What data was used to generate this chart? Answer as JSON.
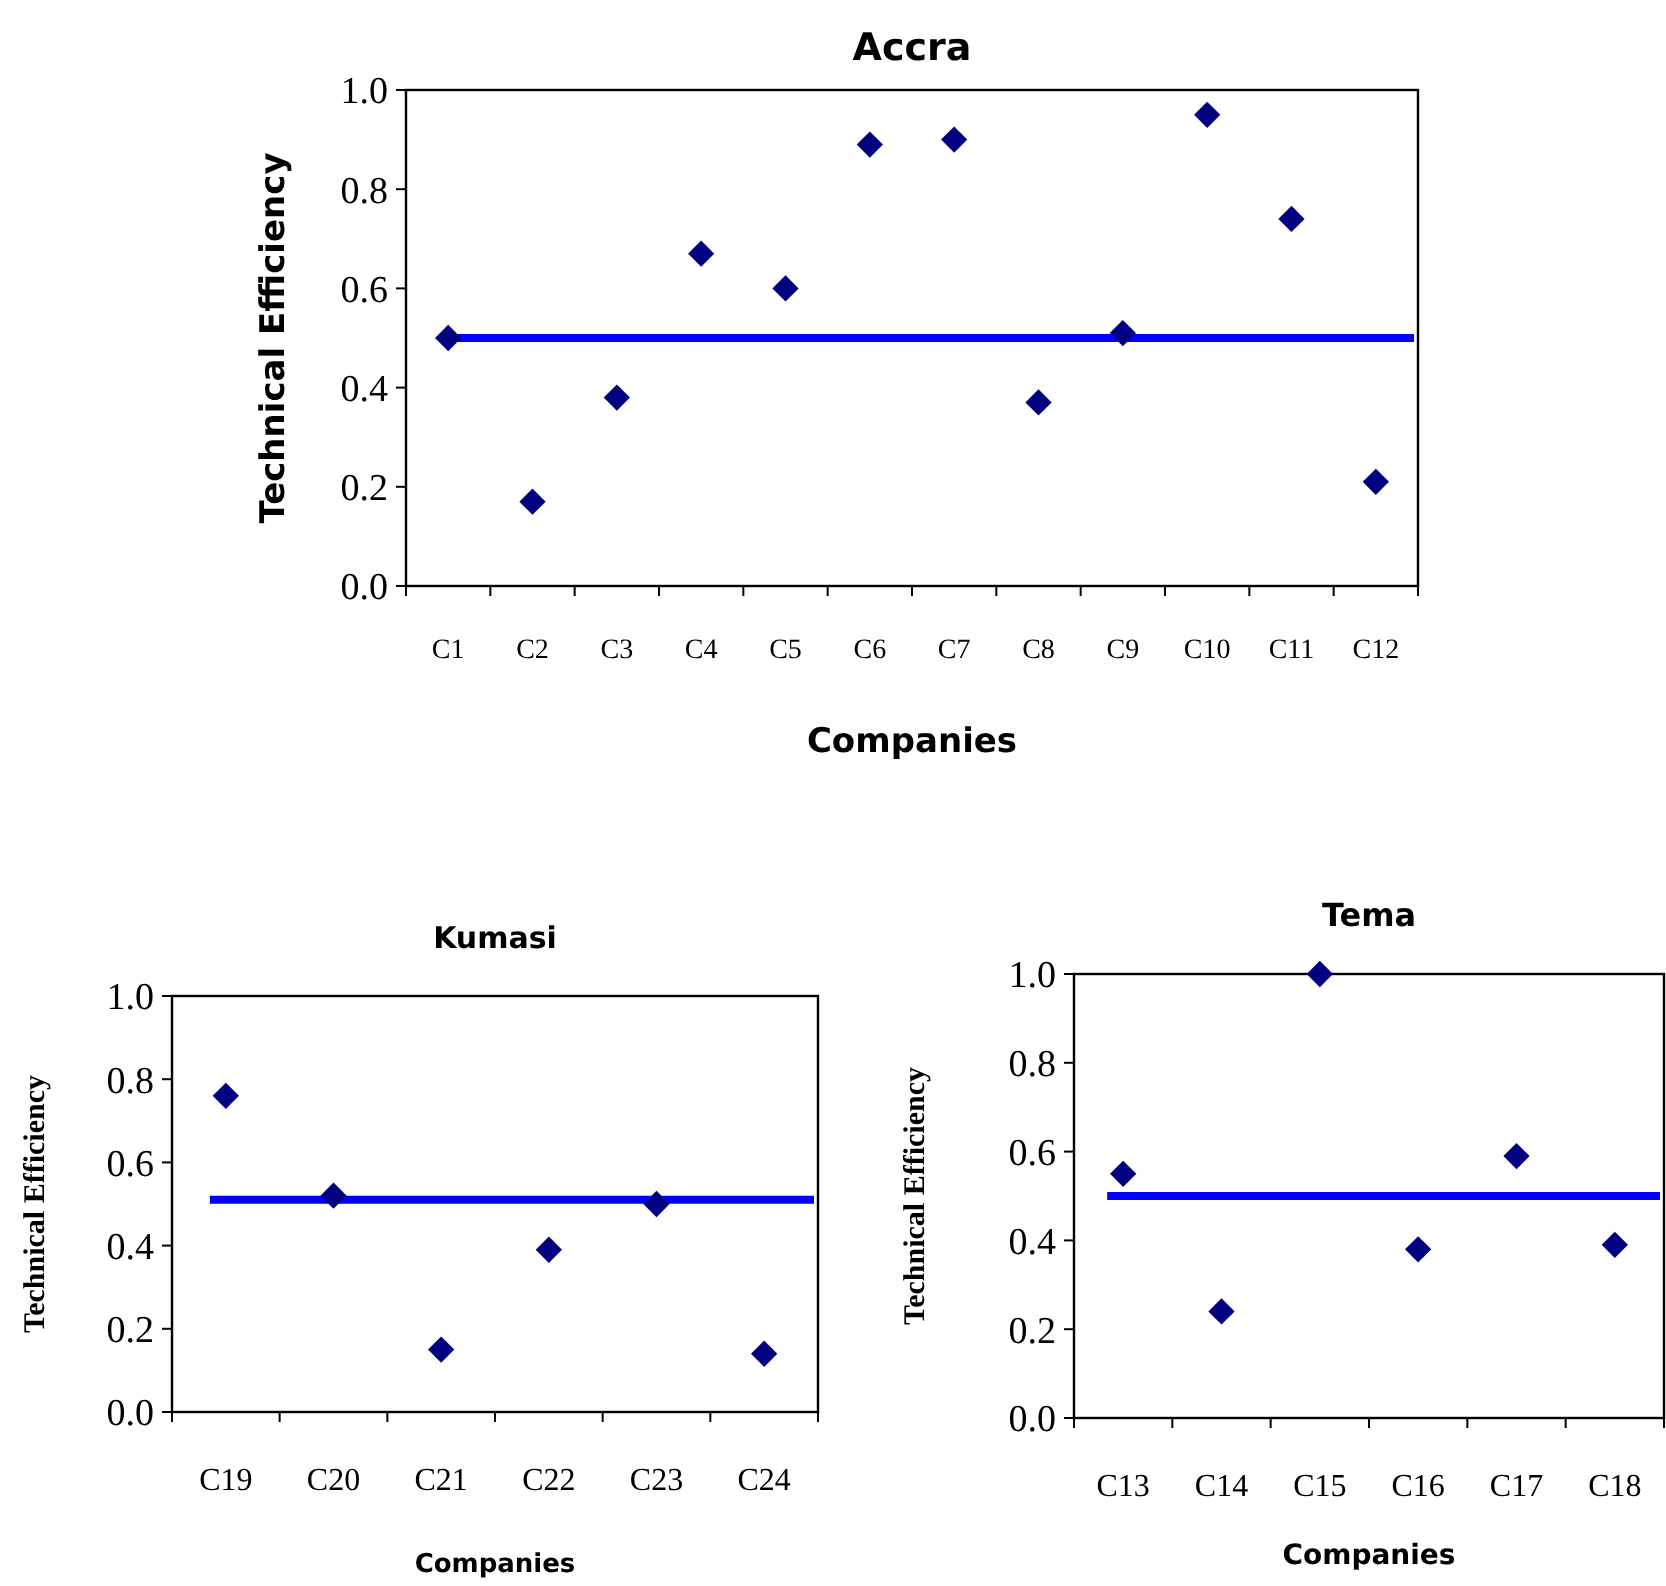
{
  "chart_data": [
    {
      "type": "scatter",
      "title": "Accra",
      "xlabel": "Companies",
      "ylabel": "Technical Efficiency",
      "categories": [
        "C1",
        "C2",
        "C3",
        "C4",
        "C5",
        "C6",
        "C7",
        "C8",
        "C9",
        "C10",
        "C11",
        "C12"
      ],
      "series": [
        {
          "color": "#000080",
          "values": [
            0.5,
            0.17,
            0.38,
            0.67,
            0.6,
            0.89,
            0.9,
            0.37,
            0.51,
            0.95,
            0.74,
            0.21
          ]
        }
      ],
      "marker": "diamond",
      "ylim": [
        0,
        1
      ],
      "yticks": [
        {
          "value": 0,
          "label": "0.0"
        },
        {
          "value": 0.2,
          "label": "0.2"
        },
        {
          "value": 0.4,
          "label": "0.4"
        },
        {
          "value": 0.6,
          "label": "0.6"
        },
        {
          "value": 0.8,
          "label": "0.8"
        },
        {
          "value": 1,
          "label": "1.0"
        }
      ],
      "ref_lines": [
        {
          "axis": "y",
          "value": 0.5,
          "color": "#0000ff"
        }
      ]
    },
    {
      "type": "scatter",
      "title": "Kumasi",
      "xlabel": "Companies",
      "ylabel": "Technical Efficiency",
      "categories": [
        "C19",
        "C20",
        "C21",
        "C22",
        "C23",
        "C24"
      ],
      "series": [
        {
          "color": "#000080",
          "values": [
            0.76,
            0.52,
            0.15,
            0.39,
            0.5,
            0.14
          ]
        }
      ],
      "marker": "diamond",
      "ylim": [
        0,
        1
      ],
      "yticks": [
        {
          "value": 0,
          "label": "0.0"
        },
        {
          "value": 0.2,
          "label": "0.2"
        },
        {
          "value": 0.4,
          "label": "0.4"
        },
        {
          "value": 0.6,
          "label": "0.6"
        },
        {
          "value": 0.8,
          "label": "0.8"
        },
        {
          "value": 1,
          "label": "1.0"
        }
      ],
      "ref_lines": [
        {
          "axis": "y",
          "value": 0.51,
          "color": "#0000ff"
        }
      ]
    },
    {
      "type": "scatter",
      "title": "Tema",
      "xlabel": "Companies",
      "ylabel": "Technical Efficiency",
      "categories": [
        "C13",
        "C14",
        "C15",
        "C16",
        "C17",
        "C18"
      ],
      "series": [
        {
          "color": "#000080",
          "values": [
            0.55,
            0.24,
            1.0,
            0.38,
            0.59,
            0.39
          ]
        }
      ],
      "marker": "diamond",
      "ylim": [
        0,
        1
      ],
      "yticks": [
        {
          "value": 0,
          "label": "0.0"
        },
        {
          "value": 0.2,
          "label": "0.2"
        },
        {
          "value": 0.4,
          "label": "0.4"
        },
        {
          "value": 0.6,
          "label": "0.6"
        },
        {
          "value": 0.8,
          "label": "0.8"
        },
        {
          "value": 1,
          "label": "1.0"
        }
      ],
      "ref_lines": [
        {
          "axis": "y",
          "value": 0.5,
          "color": "#0000ff"
        }
      ]
    }
  ]
}
